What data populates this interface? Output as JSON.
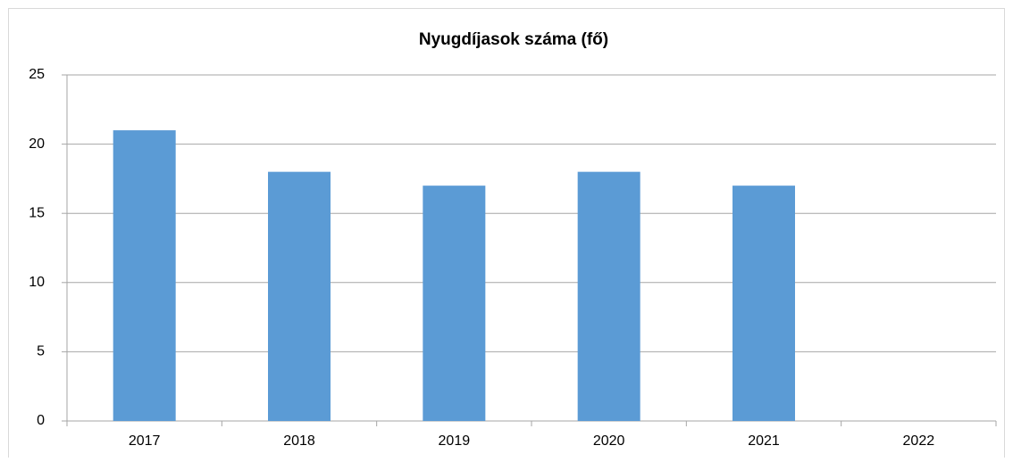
{
  "chart_data": {
    "type": "bar",
    "title": "Nyugdíjasok száma (fő)",
    "categories": [
      "2017",
      "2018",
      "2019",
      "2020",
      "2021",
      "2022"
    ],
    "values": [
      21,
      18,
      17,
      18,
      17,
      0
    ],
    "color": "#5b9bd5",
    "ylim": [
      0,
      25
    ],
    "yticks": [
      0,
      5,
      10,
      15,
      20,
      25
    ],
    "grid": true
  }
}
